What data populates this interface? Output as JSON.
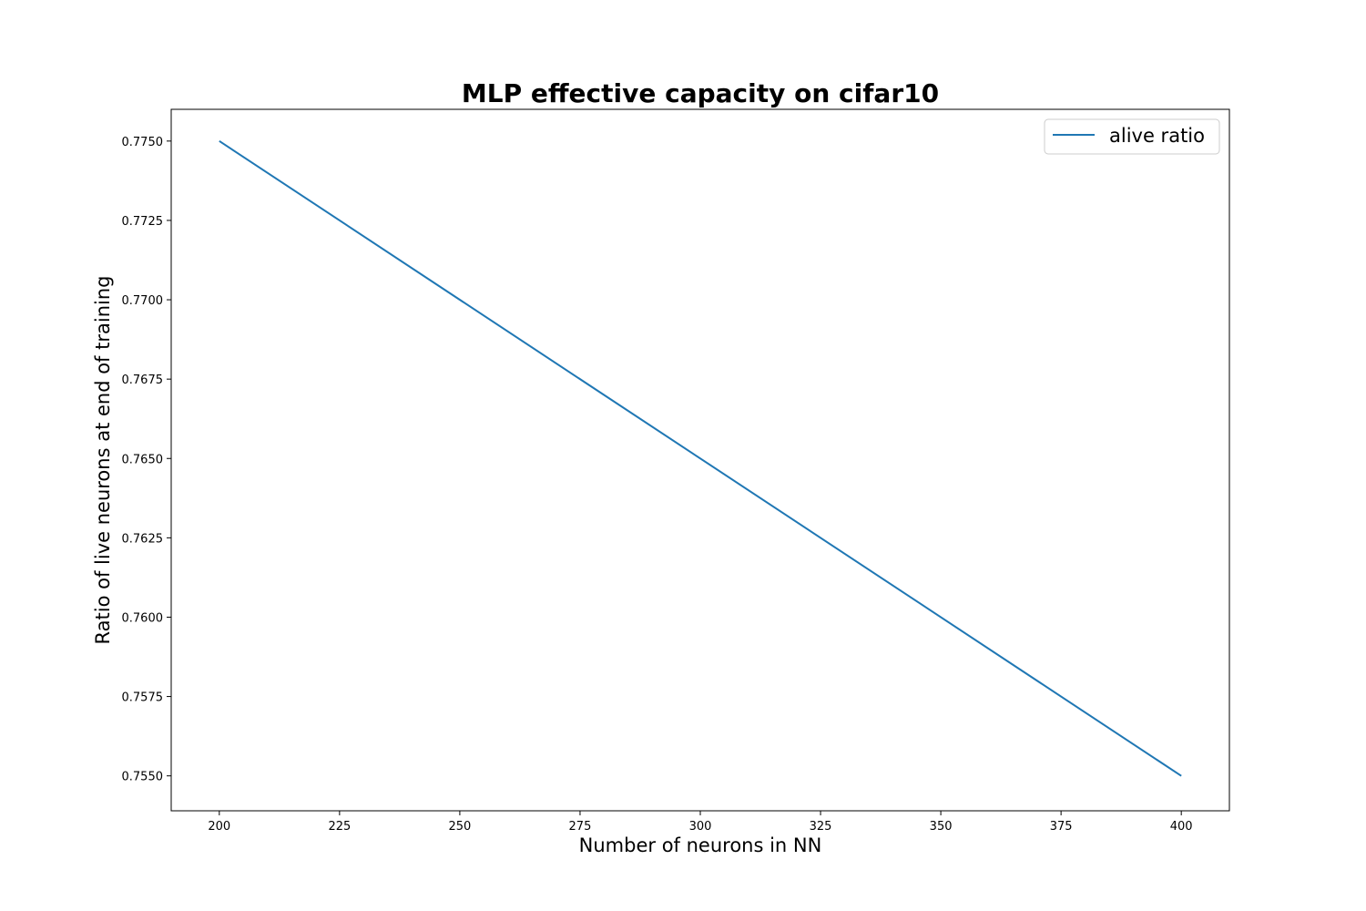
{
  "chart_data": {
    "type": "line",
    "title": "MLP effective capacity on cifar10",
    "xlabel": "Number of neurons in NN",
    "ylabel": "Ratio of live neurons at end of training",
    "xlim": [
      190,
      410
    ],
    "ylim": [
      0.7539,
      0.776
    ],
    "xticks": [
      200,
      225,
      250,
      275,
      300,
      325,
      350,
      375,
      400
    ],
    "xtick_labels": [
      "200",
      "225",
      "250",
      "275",
      "300",
      "325",
      "350",
      "375",
      "400"
    ],
    "yticks": [
      0.755,
      0.7575,
      0.76,
      0.7625,
      0.765,
      0.7675,
      0.77,
      0.7725,
      0.775
    ],
    "ytick_labels": [
      "0.7550",
      "0.7575",
      "0.7600",
      "0.7625",
      "0.7650",
      "0.7675",
      "0.7700",
      "0.7725",
      "0.7750"
    ],
    "grid": false,
    "legend_position": "top-right",
    "series": [
      {
        "name": "alive ratio",
        "color": "#1f77b4",
        "x": [
          200,
          400
        ],
        "y": [
          0.775,
          0.755
        ]
      }
    ]
  }
}
